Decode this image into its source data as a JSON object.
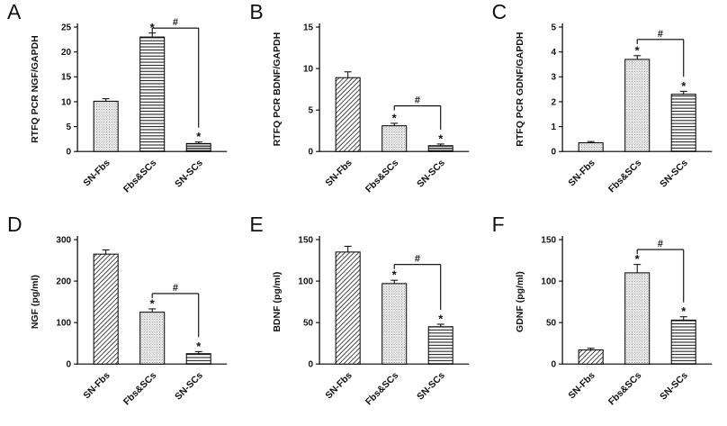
{
  "figure": {
    "background": "#ffffff",
    "groups": [
      "SN-Fbs",
      "Fbs&SCs",
      "SN-SCs"
    ]
  },
  "chart_data": [
    {
      "panel_label": "A",
      "type": "bar",
      "ylabel": "RTFQ PCR NGF/GAPDH",
      "xlabel": "",
      "categories": [
        "SN-Fbs",
        "Fbs&SCs",
        "SN-SCs"
      ],
      "values": [
        10.1,
        23.0,
        1.6
      ],
      "errors": [
        0.5,
        0.8,
        0.3
      ],
      "ylim": [
        0,
        25
      ],
      "ytick_step": 5,
      "patterns": [
        "dots",
        "hlines",
        "hlines-dense"
      ],
      "sig_stars": [
        null,
        "*",
        "*"
      ],
      "comparison": {
        "from": 1,
        "to": 2,
        "label": "#",
        "y": 24.8
      }
    },
    {
      "panel_label": "B",
      "type": "bar",
      "ylabel": "RTFQ PCR BDNF/GAPDH",
      "xlabel": "",
      "categories": [
        "SN-Fbs",
        "Fbs&SCs",
        "SN-SCs"
      ],
      "values": [
        8.9,
        3.1,
        0.7
      ],
      "errors": [
        0.7,
        0.3,
        0.2
      ],
      "ylim": [
        0,
        15
      ],
      "ytick_step": 5,
      "patterns": [
        "diagonal",
        "dots",
        "hlines-dense"
      ],
      "sig_stars": [
        null,
        "*",
        "*"
      ],
      "comparison": {
        "from": 1,
        "to": 2,
        "label": "#",
        "y": 5.5
      }
    },
    {
      "panel_label": "C",
      "type": "bar",
      "ylabel": "RTFQ PCR GDNF/GAPDH",
      "xlabel": "",
      "categories": [
        "SN-Fbs",
        "Fbs&SCs",
        "SN-SCs"
      ],
      "values": [
        0.35,
        3.7,
        2.3
      ],
      "errors": [
        0.05,
        0.15,
        0.12
      ],
      "ylim": [
        0,
        5
      ],
      "ytick_step": 1,
      "patterns": [
        "dots",
        "dots",
        "hlines"
      ],
      "sig_stars": [
        null,
        "*",
        "*"
      ],
      "comparison": {
        "from": 1,
        "to": 2,
        "label": "#",
        "y": 4.5
      }
    },
    {
      "panel_label": "D",
      "type": "bar",
      "ylabel": "NGF (pg/ml)",
      "xlabel": "",
      "categories": [
        "SN-Fbs",
        "Fbs&SCs",
        "SN-SCs"
      ],
      "values": [
        265,
        125,
        25
      ],
      "errors": [
        10,
        8,
        5
      ],
      "ylim": [
        0,
        300
      ],
      "ytick_step": 100,
      "patterns": [
        "diagonal",
        "dots",
        "hlines"
      ],
      "sig_stars": [
        null,
        "*",
        "*"
      ],
      "comparison": {
        "from": 1,
        "to": 2,
        "label": "#",
        "y": 170
      }
    },
    {
      "panel_label": "E",
      "type": "bar",
      "ylabel": "BDNF (pg/ml)",
      "xlabel": "",
      "categories": [
        "SN-Fbs",
        "Fbs&SCs",
        "SN-SCs"
      ],
      "values": [
        135,
        97,
        45
      ],
      "errors": [
        7,
        4,
        3
      ],
      "ylim": [
        0,
        150
      ],
      "ytick_step": 50,
      "patterns": [
        "diagonal",
        "dots",
        "hlines"
      ],
      "sig_stars": [
        null,
        "*",
        "*"
      ],
      "comparison": {
        "from": 1,
        "to": 2,
        "label": "#",
        "y": 120
      }
    },
    {
      "panel_label": "F",
      "type": "bar",
      "ylabel": "GDNF (pg/ml)",
      "xlabel": "",
      "categories": [
        "SN-Fbs",
        "Fbs&SCs",
        "SN-SCs"
      ],
      "values": [
        17,
        110,
        53
      ],
      "errors": [
        2,
        10,
        4
      ],
      "ylim": [
        0,
        150
      ],
      "ytick_step": 50,
      "patterns": [
        "diagonal",
        "dots",
        "hlines"
      ],
      "sig_stars": [
        null,
        "*",
        "*"
      ],
      "comparison": {
        "from": 1,
        "to": 2,
        "label": "#",
        "y": 138
      }
    }
  ]
}
